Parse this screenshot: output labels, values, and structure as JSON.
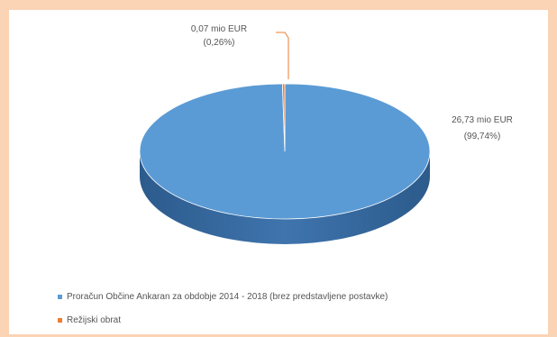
{
  "colors": {
    "background": "#fbd3b5",
    "panel": "#ffffff",
    "slice_main": "#5b9bd5",
    "slice_small": "#ed7d31",
    "text": "#555555"
  },
  "chart_data": {
    "type": "pie",
    "style": "3d",
    "slices": [
      {
        "name": "Proračun Občine Ankaran za obdobje 2014 - 2018 (brez predstavljene postavke)",
        "value": 26.73,
        "label_value": "26,73 mio EUR",
        "label_percent": "(99,74%)",
        "color": "#5b9bd5"
      },
      {
        "name": "Režijski obrat",
        "value": 0.07,
        "label_value": "0,07 mio EUR",
        "label_percent": "(0,26%)",
        "color": "#ed7d31"
      }
    ],
    "legend_position": "bottom-left"
  }
}
